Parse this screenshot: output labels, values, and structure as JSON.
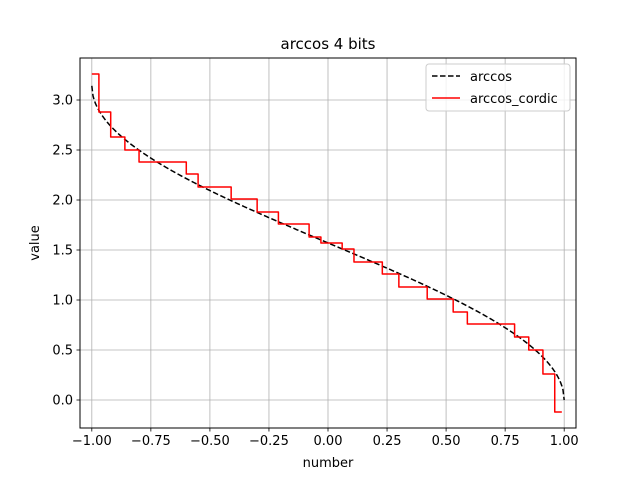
{
  "chart_data": {
    "type": "line",
    "title": "arccos 4 bits",
    "xlabel": "number",
    "ylabel": "value",
    "xlim": [
      -1.05,
      1.05
    ],
    "ylim": [
      -0.28,
      3.42
    ],
    "grid": true,
    "legend_position": "top-right",
    "x_ticks": [
      -1.0,
      -0.75,
      -0.5,
      -0.25,
      0.0,
      0.25,
      0.5,
      0.75,
      1.0
    ],
    "x_tick_labels": [
      "−1.00",
      "−0.75",
      "−0.50",
      "−0.25",
      "0.00",
      "0.25",
      "0.50",
      "0.75",
      "1.00"
    ],
    "y_ticks": [
      0.0,
      0.5,
      1.0,
      1.5,
      2.0,
      2.5,
      3.0
    ],
    "y_tick_labels": [
      "0.0",
      "0.5",
      "1.0",
      "1.5",
      "2.0",
      "2.5",
      "3.0"
    ],
    "series": [
      {
        "name": "arccos",
        "color": "#000000",
        "style": "dashed",
        "function": "arccos",
        "x_range": [
          -1.0,
          1.0
        ]
      },
      {
        "name": "arccos_cordic",
        "color": "#ff0000",
        "style": "solid",
        "step_points": [
          [
            -1.0,
            3.26
          ],
          [
            -0.97,
            3.26
          ],
          [
            -0.97,
            2.88
          ],
          [
            -0.92,
            2.88
          ],
          [
            -0.92,
            2.63
          ],
          [
            -0.86,
            2.63
          ],
          [
            -0.86,
            2.5
          ],
          [
            -0.8,
            2.5
          ],
          [
            -0.8,
            2.38
          ],
          [
            -0.6,
            2.38
          ],
          [
            -0.6,
            2.26
          ],
          [
            -0.55,
            2.26
          ],
          [
            -0.55,
            2.13
          ],
          [
            -0.41,
            2.13
          ],
          [
            -0.41,
            2.01
          ],
          [
            -0.3,
            2.01
          ],
          [
            -0.3,
            1.88
          ],
          [
            -0.21,
            1.88
          ],
          [
            -0.21,
            1.76
          ],
          [
            -0.08,
            1.76
          ],
          [
            -0.08,
            1.63
          ],
          [
            -0.03,
            1.63
          ],
          [
            -0.03,
            1.57
          ],
          [
            0.06,
            1.57
          ],
          [
            0.06,
            1.51
          ],
          [
            0.11,
            1.51
          ],
          [
            0.11,
            1.38
          ],
          [
            0.23,
            1.38
          ],
          [
            0.23,
            1.26
          ],
          [
            0.3,
            1.26
          ],
          [
            0.3,
            1.13
          ],
          [
            0.42,
            1.13
          ],
          [
            0.42,
            1.01
          ],
          [
            0.53,
            1.01
          ],
          [
            0.53,
            0.88
          ],
          [
            0.59,
            0.88
          ],
          [
            0.59,
            0.76
          ],
          [
            0.79,
            0.76
          ],
          [
            0.79,
            0.63
          ],
          [
            0.85,
            0.63
          ],
          [
            0.85,
            0.5
          ],
          [
            0.91,
            0.5
          ],
          [
            0.91,
            0.26
          ],
          [
            0.96,
            0.26
          ],
          [
            0.96,
            -0.12
          ],
          [
            0.99,
            -0.12
          ]
        ]
      }
    ]
  }
}
